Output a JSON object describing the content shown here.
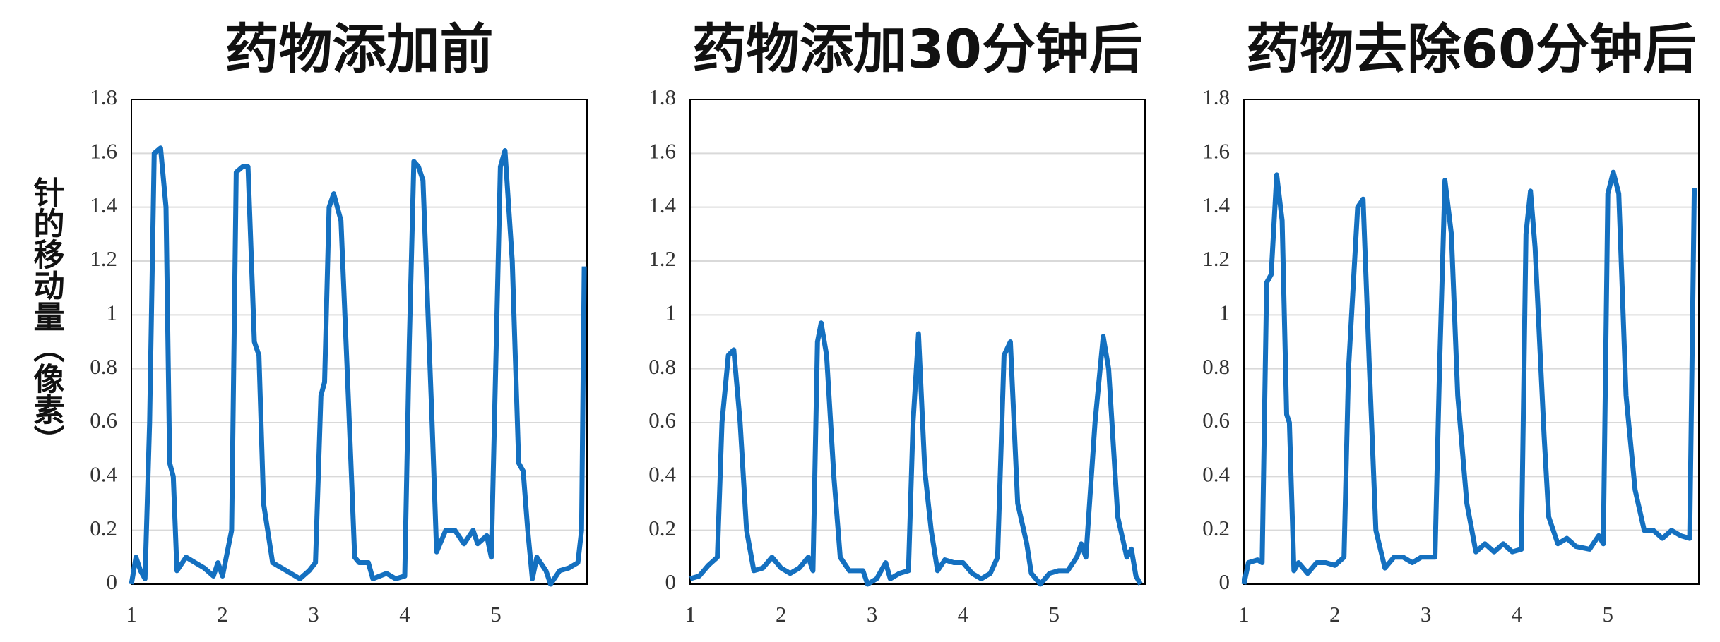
{
  "chart_data": [
    {
      "type": "line",
      "title": "药物添加前",
      "ylabel": "针的移动量（像素）",
      "color": "#1470c0",
      "grid": true,
      "xlim": [
        1,
        6
      ],
      "xticks": [
        1,
        2,
        3,
        4,
        5
      ],
      "ylim": [
        0,
        1.8
      ],
      "yticks": [
        0,
        0.2,
        0.4,
        0.6,
        0.8,
        1,
        1.2,
        1.4,
        1.6,
        1.8
      ],
      "x": [
        1.0,
        1.05,
        1.1,
        1.15,
        1.2,
        1.25,
        1.32,
        1.38,
        1.42,
        1.46,
        1.5,
        1.6,
        1.7,
        1.8,
        1.9,
        1.95,
        2.0,
        2.1,
        2.15,
        2.22,
        2.28,
        2.35,
        2.4,
        2.45,
        2.55,
        2.7,
        2.85,
        2.95,
        3.02,
        3.08,
        3.12,
        3.17,
        3.22,
        3.3,
        3.38,
        3.45,
        3.5,
        3.6,
        3.65,
        3.8,
        3.9,
        4.0,
        4.05,
        4.1,
        4.15,
        4.2,
        4.3,
        4.35,
        4.45,
        4.55,
        4.65,
        4.75,
        4.8,
        4.9,
        4.95,
        5.05,
        5.1,
        5.18,
        5.25,
        5.3,
        5.35,
        5.4,
        5.45,
        5.55,
        5.6,
        5.7,
        5.8,
        5.9,
        5.94,
        5.97
      ],
      "values": [
        0,
        0.1,
        0.05,
        0.02,
        0.6,
        1.6,
        1.62,
        1.4,
        0.45,
        0.4,
        0.05,
        0.1,
        0.08,
        0.06,
        0.03,
        0.08,
        0.03,
        0.2,
        1.53,
        1.55,
        1.55,
        0.9,
        0.85,
        0.3,
        0.08,
        0.05,
        0.02,
        0.05,
        0.08,
        0.7,
        0.75,
        1.4,
        1.45,
        1.35,
        0.7,
        0.1,
        0.08,
        0.08,
        0.02,
        0.04,
        0.02,
        0.03,
        0.9,
        1.57,
        1.55,
        1.5,
        0.6,
        0.12,
        0.2,
        0.2,
        0.15,
        0.2,
        0.15,
        0.18,
        0.1,
        1.55,
        1.61,
        1.2,
        0.45,
        0.42,
        0.2,
        0.02,
        0.1,
        0.05,
        0,
        0.05,
        0.06,
        0.08,
        0.2,
        1.18
      ]
    },
    {
      "type": "line",
      "title": "药物添加30分钟后",
      "color": "#1470c0",
      "grid": true,
      "xlim": [
        1,
        6
      ],
      "xticks": [
        1,
        2,
        3,
        4,
        5
      ],
      "ylim": [
        0,
        1.8
      ],
      "yticks": [
        0,
        0.2,
        0.4,
        0.6,
        0.8,
        1,
        1.2,
        1.4,
        1.6,
        1.8
      ],
      "x": [
        1.0,
        1.1,
        1.2,
        1.3,
        1.35,
        1.42,
        1.48,
        1.55,
        1.62,
        1.7,
        1.8,
        1.9,
        2.0,
        2.1,
        2.2,
        2.3,
        2.35,
        2.4,
        2.44,
        2.5,
        2.58,
        2.65,
        2.75,
        2.9,
        2.95,
        3.05,
        3.15,
        3.2,
        3.3,
        3.4,
        3.45,
        3.51,
        3.58,
        3.65,
        3.72,
        3.8,
        3.9,
        4.0,
        4.1,
        4.2,
        4.3,
        4.38,
        4.45,
        4.52,
        4.6,
        4.7,
        4.75,
        4.85,
        4.95,
        5.05,
        5.15,
        5.25,
        5.3,
        5.35,
        5.45,
        5.54,
        5.6,
        5.7,
        5.8,
        5.85,
        5.9,
        5.95
      ],
      "values": [
        0.02,
        0.03,
        0.07,
        0.1,
        0.6,
        0.85,
        0.87,
        0.6,
        0.2,
        0.05,
        0.06,
        0.1,
        0.06,
        0.04,
        0.06,
        0.1,
        0.05,
        0.9,
        0.97,
        0.85,
        0.4,
        0.1,
        0.05,
        0.05,
        0,
        0.02,
        0.08,
        0.02,
        0.04,
        0.05,
        0.6,
        0.93,
        0.42,
        0.2,
        0.05,
        0.09,
        0.08,
        0.08,
        0.04,
        0.02,
        0.04,
        0.1,
        0.85,
        0.9,
        0.3,
        0.15,
        0.04,
        0,
        0.04,
        0.05,
        0.05,
        0.1,
        0.15,
        0.1,
        0.6,
        0.92,
        0.8,
        0.25,
        0.1,
        0.13,
        0.03,
        0
      ]
    },
    {
      "type": "line",
      "title": "药物去除60分钟后",
      "color": "#1470c0",
      "grid": true,
      "xlim": [
        1,
        6
      ],
      "xticks": [
        1,
        2,
        3,
        4,
        5
      ],
      "ylim": [
        0,
        1.8
      ],
      "yticks": [
        0,
        0.2,
        0.4,
        0.6,
        0.8,
        1,
        1.2,
        1.4,
        1.6,
        1.8
      ],
      "x": [
        1.0,
        1.05,
        1.15,
        1.2,
        1.25,
        1.3,
        1.36,
        1.42,
        1.47,
        1.5,
        1.55,
        1.6,
        1.7,
        1.8,
        1.9,
        2.0,
        2.1,
        2.15,
        2.25,
        2.31,
        2.38,
        2.45,
        2.55,
        2.65,
        2.75,
        2.85,
        2.95,
        3.05,
        3.1,
        3.15,
        3.21,
        3.28,
        3.35,
        3.45,
        3.55,
        3.65,
        3.75,
        3.85,
        3.95,
        4.05,
        4.1,
        4.15,
        4.2,
        4.3,
        4.35,
        4.45,
        4.55,
        4.65,
        4.8,
        4.9,
        4.95,
        5.0,
        5.06,
        5.12,
        5.2,
        5.3,
        5.4,
        5.5,
        5.6,
        5.7,
        5.8,
        5.9,
        5.95
      ],
      "values": [
        0,
        0.08,
        0.09,
        0.08,
        1.12,
        1.15,
        1.52,
        1.35,
        0.63,
        0.6,
        0.05,
        0.08,
        0.04,
        0.08,
        0.08,
        0.07,
        0.1,
        0.8,
        1.4,
        1.43,
        0.8,
        0.2,
        0.06,
        0.1,
        0.1,
        0.08,
        0.1,
        0.1,
        0.1,
        0.8,
        1.5,
        1.3,
        0.7,
        0.3,
        0.12,
        0.15,
        0.12,
        0.15,
        0.12,
        0.13,
        1.3,
        1.46,
        1.25,
        0.55,
        0.25,
        0.15,
        0.17,
        0.14,
        0.13,
        0.18,
        0.15,
        1.45,
        1.53,
        1.45,
        0.7,
        0.35,
        0.2,
        0.2,
        0.17,
        0.2,
        0.18,
        0.17,
        1.47
      ]
    }
  ]
}
